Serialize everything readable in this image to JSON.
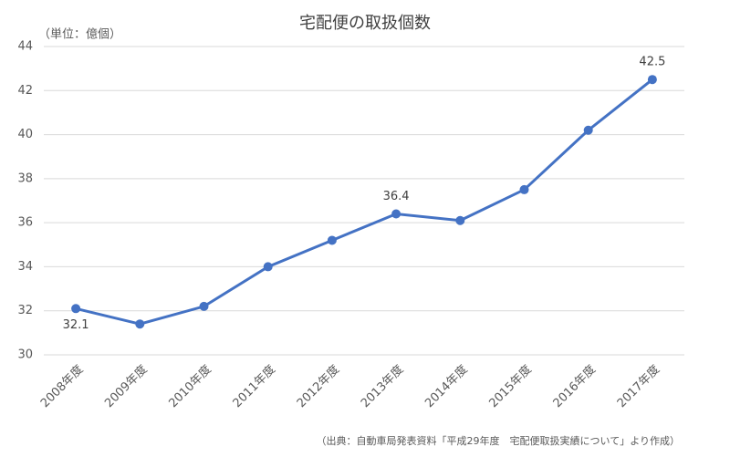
{
  "chart_data": {
    "type": "line",
    "title": "宅配便の取扱個数",
    "unit_label": "（単位：億個）",
    "source": "（出典：自動車局発表資料「平成29年度　宅配便取扱実績について」より作成）",
    "categories": [
      "2008年度",
      "2009年度",
      "2010年度",
      "2011年度",
      "2012年度",
      "2013年度",
      "2014年度",
      "2015年度",
      "2016年度",
      "2017年度"
    ],
    "values": [
      32.1,
      31.4,
      32.2,
      34.0,
      35.2,
      36.4,
      36.1,
      37.5,
      40.2,
      42.5
    ],
    "value_labels": [
      "32.1",
      null,
      null,
      null,
      null,
      "36.4",
      null,
      null,
      null,
      "42.5"
    ],
    "color": "#4472c4",
    "ylim": [
      30,
      44
    ],
    "yticks": [
      30,
      32,
      34,
      36,
      38,
      40,
      42,
      44
    ],
    "grid": true
  }
}
